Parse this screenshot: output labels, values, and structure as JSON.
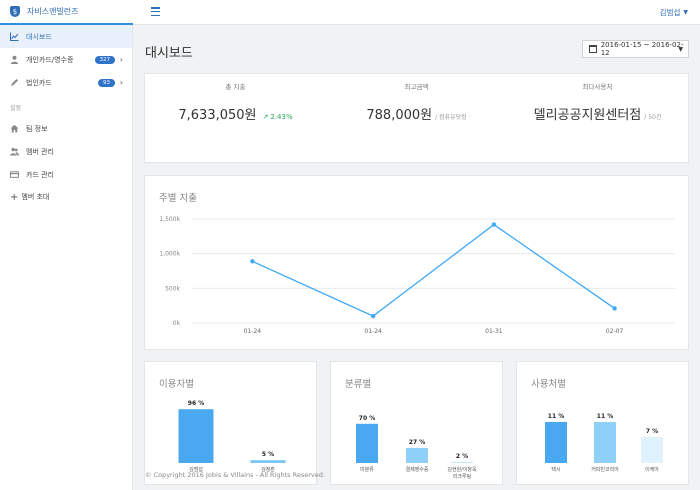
{
  "app": {
    "brand_name": "자비스앤빌런즈",
    "logo_glyph": "$",
    "user_name": "김범섭",
    "accent": "#2f8fe0"
  },
  "sidebar": {
    "items": [
      {
        "label": "대시보드",
        "icon": "chart-icon",
        "active": true
      },
      {
        "label": "개인카드/영수증",
        "icon": "person-icon",
        "badge": "327"
      },
      {
        "label": "법인카드",
        "icon": "pencil-icon",
        "badge": "93"
      }
    ],
    "section_label": "설정",
    "settings_items": [
      {
        "label": "팀 정보",
        "icon": "home-icon"
      },
      {
        "label": "멤버 관리",
        "icon": "people-icon"
      },
      {
        "label": "카드 관리",
        "icon": "card-icon"
      }
    ],
    "invite_label": "멤버 초대"
  },
  "main": {
    "title": "대시보드",
    "date_range": "2016-01-15 ~ 2016-02-12",
    "stats": [
      {
        "label": "총 지출",
        "value": "7,633,050원",
        "trend": "2.43%"
      },
      {
        "label": "최고금액",
        "value": "788,000원",
        "sub": "/ 컴퓨유닷컴"
      },
      {
        "label": "최다사용처",
        "value": "델리공공지원센터점",
        "sub": "/ 50건"
      }
    ],
    "footer": "© Copyright 2016 Jobis & Villains - All Rights Reserved."
  },
  "chart_data": [
    {
      "type": "line",
      "title": "주별 지출",
      "categories": [
        "01-24",
        "01-24",
        "01-31",
        "02-07"
      ],
      "series": [
        {
          "values": [
            890000,
            100000,
            1420000,
            210000
          ]
        }
      ],
      "ylim": [
        0,
        1500000
      ],
      "yticks": [
        0,
        500000,
        1000000,
        1500000
      ],
      "ytick_labels": [
        "0k",
        "500k",
        "1,000k",
        "1,500k"
      ],
      "grid": true,
      "color": "#3fa9f5"
    },
    {
      "type": "bar",
      "title": "이용자별",
      "categories": [
        "김범섭",
        "김정훈"
      ],
      "values": [
        96,
        5
      ],
      "value_labels": [
        "96 %",
        "5 %"
      ],
      "ylim": [
        0,
        100
      ],
      "colors": [
        "#4aa8f0",
        "#7cc7f7"
      ]
    },
    {
      "type": "bar",
      "title": "분류별",
      "categories": [
        "미분류",
        "결제영수증",
        "김현원/이창욱\n리크루팅"
      ],
      "values": [
        70,
        27,
        2
      ],
      "value_labels": [
        "70 %",
        "27 %",
        "2 %"
      ],
      "ylim": [
        0,
        100
      ],
      "colors": [
        "#4aa8f0",
        "#8fd0f8",
        "#cbe9fb"
      ]
    },
    {
      "type": "bar",
      "title": "사용처별",
      "categories": [
        "택시",
        "커피빈코리아",
        "이케아"
      ],
      "values": [
        11,
        11,
        7
      ],
      "value_labels": [
        "11 %",
        "11 %",
        "7 %"
      ],
      "ylim": [
        0,
        15
      ],
      "colors": [
        "#4aa8f0",
        "#8fd0f8",
        "#dff2fd"
      ]
    }
  ]
}
